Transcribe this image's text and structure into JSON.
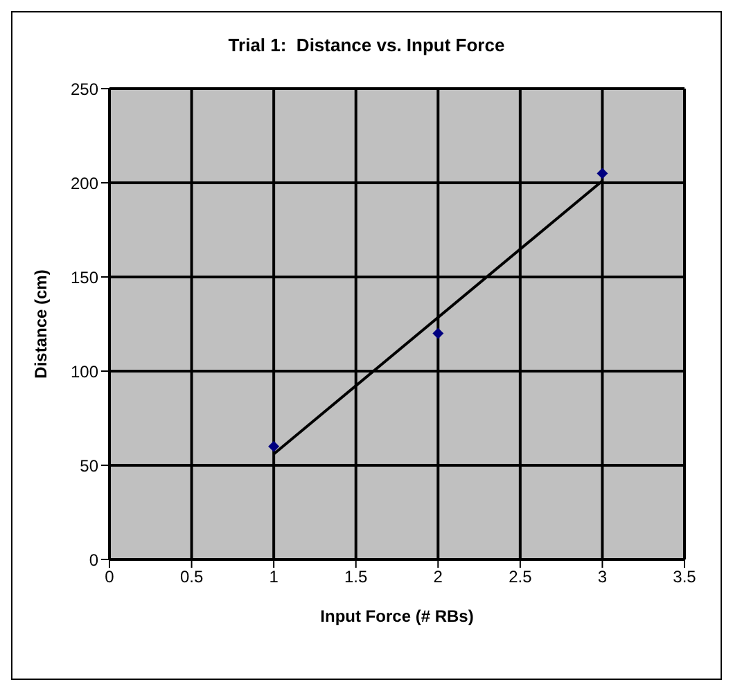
{
  "chart_data": {
    "type": "scatter",
    "title": "Trial 1:  Distance vs. Input Force",
    "xlabel": "Input Force (# RBs)",
    "ylabel": "Distance (cm)",
    "x": [
      1,
      2,
      3
    ],
    "series": [
      {
        "color": "#000080",
        "values": [
          60,
          120,
          205
        ],
        "marker": "diamond"
      },
      {
        "type": "line",
        "color": "#000000",
        "x": [
          1,
          3
        ],
        "values": [
          56,
          201
        ],
        "marker": "none"
      }
    ],
    "xlim": [
      0,
      3.5
    ],
    "xticks": [
      0,
      0.5,
      1,
      1.5,
      2,
      2.5,
      3,
      3.5
    ],
    "ylim": [
      0,
      250
    ],
    "yticks": [
      0,
      50,
      100,
      150,
      200,
      250
    ],
    "grid": true,
    "legend": false
  }
}
